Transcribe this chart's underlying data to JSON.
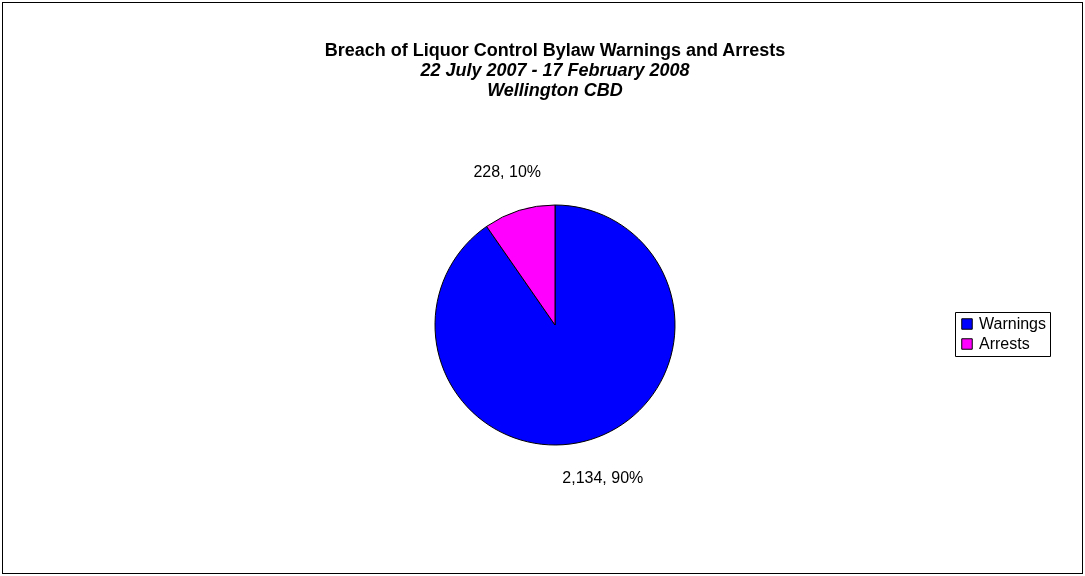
{
  "chart_data": {
    "type": "pie",
    "title": "Breach of Liquor Control Bylaw  Warnings and Arrests",
    "subtitle": "22 July 2007 - 17 February 2008\nWellington CBD",
    "categories": [
      "Warnings",
      "Arrests"
    ],
    "values": [
      2134,
      228
    ],
    "colors": [
      "#0000ff",
      "#ff00ff"
    ],
    "value_labels": [
      "2,134, 90%",
      "228, 10%"
    ],
    "legend": "right"
  }
}
